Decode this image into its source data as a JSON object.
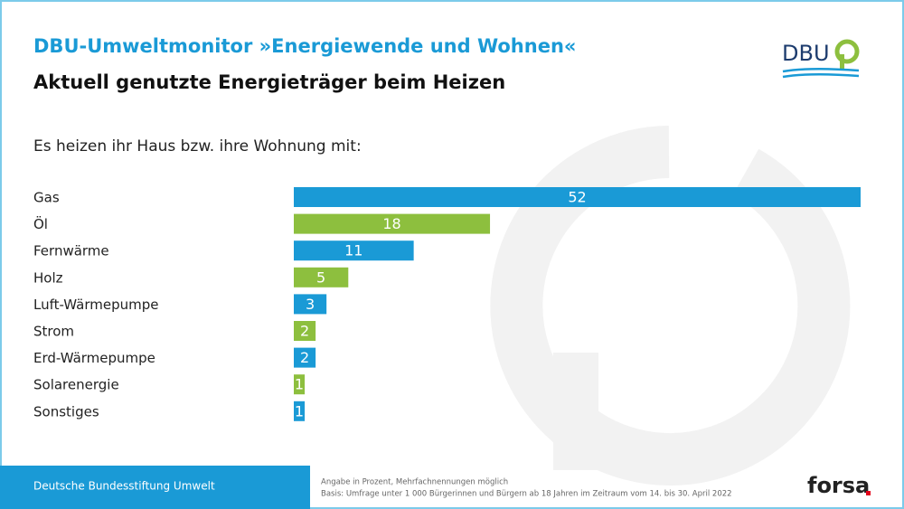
{
  "chart_data": {
    "type": "hbar",
    "title": "DBU-Umweltmonitor »Energiewende und Wohnen«",
    "subtitle": "Aktuell genutzte Energieträger beim Heizen",
    "question": "Es heizen ihr Haus bzw. ihre Wohnung mit:",
    "categories": [
      "Gas",
      "Öl",
      "Fernwärme",
      "Holz",
      "Luft-Wärmepumpe",
      "Strom",
      "Erd-Wärmepumpe",
      "Solarenergie",
      "Sonstiges"
    ],
    "values": [
      52,
      18,
      11,
      5,
      3,
      2,
      2,
      1,
      1
    ],
    "colors": [
      "#1a9ad6",
      "#8dbf3e",
      "#1a9ad6",
      "#8dbf3e",
      "#1a9ad6",
      "#8dbf3e",
      "#1a9ad6",
      "#8dbf3e",
      "#1a9ad6"
    ]
  },
  "footer": {
    "organization": "Deutsche Bundesstiftung Umwelt",
    "notes": [
      "Angabe in Prozent, Mehrfachnennungen möglich",
      "Basis: Umfrage unter 1 000 Bürgerinnen und Bürgern ab 18 Jahren im Zeitraum vom 14. bis 30. April 2022"
    ]
  },
  "logos": {
    "dbu": "DBU",
    "forsa": "forsa"
  }
}
